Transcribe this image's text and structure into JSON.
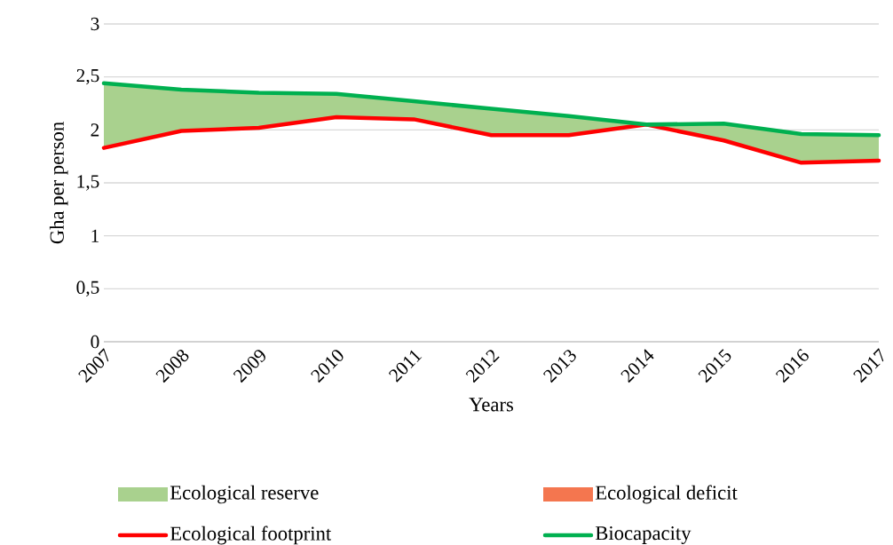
{
  "chart_data": {
    "type": "line",
    "xlabel": "Years",
    "ylabel": "Gha per person",
    "categories": [
      "2007",
      "2008",
      "2009",
      "2010",
      "2011",
      "2012",
      "2013",
      "2014",
      "2015",
      "2016",
      "2017"
    ],
    "series": [
      {
        "name": "Ecological reserve",
        "type": "area",
        "color": "#a9d18e",
        "values": [
          null,
          null,
          null,
          null,
          null,
          null,
          null,
          null,
          null,
          null,
          null
        ]
      },
      {
        "name": "Ecological deficit",
        "type": "area",
        "color": "#f4764f",
        "values": [
          null,
          null,
          null,
          null,
          null,
          null,
          null,
          null,
          null,
          null,
          null
        ]
      },
      {
        "name": "Ecological footprint",
        "color": "#ff0000",
        "values": [
          1.83,
          1.99,
          2.02,
          2.12,
          2.1,
          1.95,
          1.95,
          2.05,
          1.9,
          1.69,
          1.71
        ]
      },
      {
        "name": "Biocapacity",
        "color": "#00b050",
        "values": [
          2.44,
          2.38,
          2.35,
          2.34,
          2.27,
          2.2,
          2.13,
          2.05,
          2.06,
          1.96,
          1.95
        ],
        "lower": [
          1.83,
          1.99,
          2.02,
          2.12,
          2.1,
          1.95,
          1.95,
          2.05,
          1.9,
          1.69,
          1.71
        ],
        "upper": [
          2.44,
          2.38,
          2.35,
          2.34,
          2.27,
          2.2,
          2.13,
          2.05,
          2.06,
          1.96,
          1.95
        ]
      }
    ],
    "ylim": [
      0,
      3
    ],
    "yticks": [
      0,
      {
        "value": 0.5,
        "label": "0,5"
      },
      1,
      {
        "value": 1.5,
        "label": "1,5"
      },
      2,
      {
        "value": 2.5,
        "label": "2,5"
      },
      3
    ],
    "grid": "y",
    "legend": "bottom"
  }
}
